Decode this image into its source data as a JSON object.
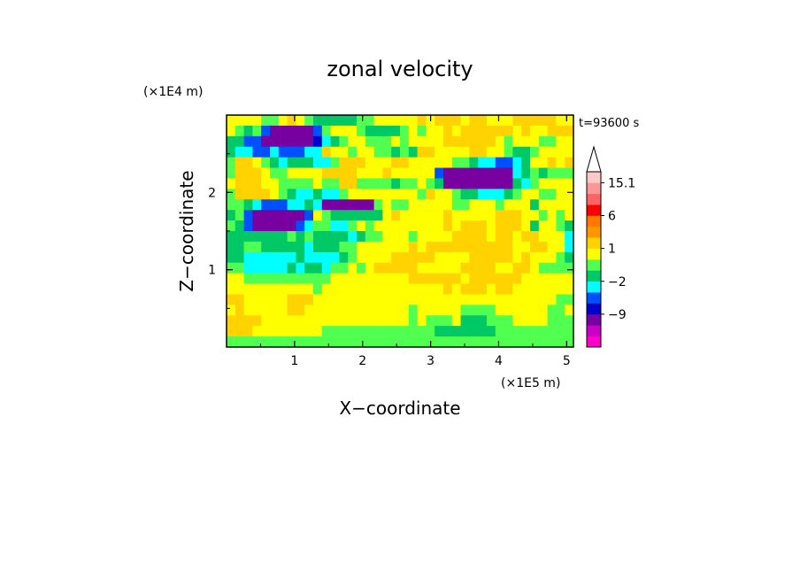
{
  "chart_data": {
    "type": "heatmap",
    "title": "zonal velocity",
    "xlabel": "X−coordinate",
    "ylabel": "Z−coordinate",
    "x_scale_label": "(×1E5 m)",
    "y_scale_label": "(×1E4 m)",
    "time_label": "t=93600 s",
    "xlim": [
      0,
      5.1
    ],
    "ylim": [
      0,
      3.0
    ],
    "x_ticks": [
      "1",
      "2",
      "3",
      "4",
      "5"
    ],
    "y_ticks": [
      "1",
      "2"
    ],
    "x_tick_values": [
      1,
      2,
      3,
      4,
      5
    ],
    "y_tick_values": [
      1,
      2
    ],
    "colorbar": {
      "tick_labels": [
        "15.1",
        "6",
        "1",
        "−2",
        "−9"
      ],
      "tick_values": [
        15.1,
        6,
        1,
        -2,
        -9
      ],
      "levels": [
        {
          "color": "#ff00c8"
        },
        {
          "color": "#c800c8"
        },
        {
          "color": "#7800a0"
        },
        {
          "color": "#0000c8"
        },
        {
          "color": "#0050ff"
        },
        {
          "color": "#00ffff"
        },
        {
          "color": "#00c864"
        },
        {
          "color": "#50ff50"
        },
        {
          "color": "#ffff00"
        },
        {
          "color": "#ffd200"
        },
        {
          "color": "#ff9600"
        },
        {
          "color": "#ff7800"
        },
        {
          "color": "#ff0000"
        },
        {
          "color": "#ff6464"
        },
        {
          "color": "#ff9696"
        },
        {
          "color": "#ffc8c8"
        }
      ],
      "extend_max": true
    },
    "field": {
      "rows_top_to_bottom": [
        "8888778987666667788888989998998889999988",
        "8767422222478887666678788989999998988999",
        "6644222222356788777878888999999878887788",
        "6554454445598878877676998888998876678888",
        "7998765666557999888998888877655445688989",
        "7999877888899998889888884222222225676777",
        "8999887777877997777677876222222226578888",
        "7999987655655788888888798876655567887788",
        "7765444556522222278778888877888788868888",
        "6742222224876666668988888988888999887878",
        "7642222245775578788888888989998999868876",
        "6666666767666656778887888899998998998885",
        "6677666665666778888889899999999998899885",
        "6655555565555678888999998888999998988876",
        "7755555656657787899999888889999889987777",
        "8877777777778888888889999998999999888888",
        "8888888888788888888888888989998998888888",
        "9988888999888888888888888888888888888877",
        "8988888998888888888887888887777888888778",
        "9999888888888888888887877786667778888777",
        "9998888888877777777777776666666777777777",
        "7777777777777777777777777777777777777777"
      ]
    }
  }
}
